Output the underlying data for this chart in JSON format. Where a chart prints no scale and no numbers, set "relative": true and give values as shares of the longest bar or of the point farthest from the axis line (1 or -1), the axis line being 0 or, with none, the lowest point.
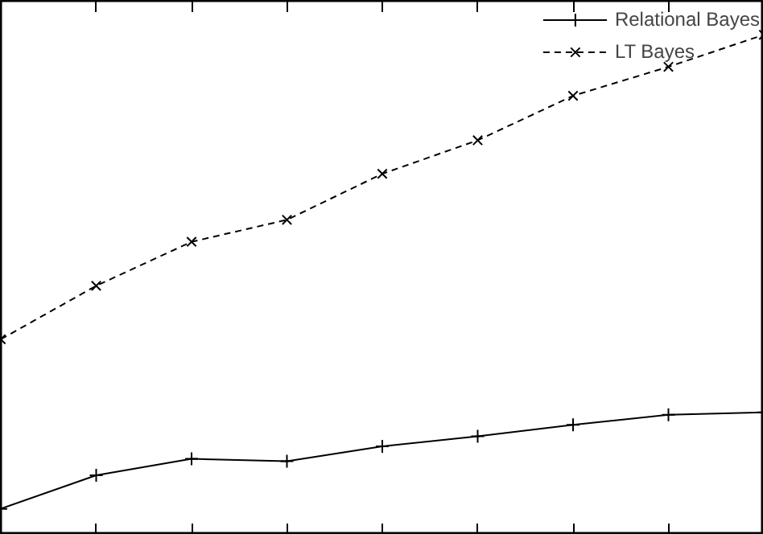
{
  "chart_data": {
    "type": "line",
    "relative": true,
    "categories": [
      null,
      null,
      null,
      null,
      null,
      null,
      null,
      null,
      null
    ],
    "series": [
      {
        "name": "Relational Bayes",
        "color": "#000000",
        "marker": "cross",
        "line_style": "solid",
        "values": [
          0.052,
          0.119,
          0.152,
          0.147,
          0.177,
          0.197,
          0.22,
          0.24,
          0.245
        ]
      },
      {
        "name": "LT Bayes",
        "color": "#000000",
        "marker": "x",
        "line_style": "dashed",
        "values": [
          0.391,
          0.498,
          0.586,
          0.63,
          0.722,
          0.789,
          0.878,
          0.936,
          1.0
        ]
      }
    ],
    "legend": "top right",
    "grid": false
  }
}
